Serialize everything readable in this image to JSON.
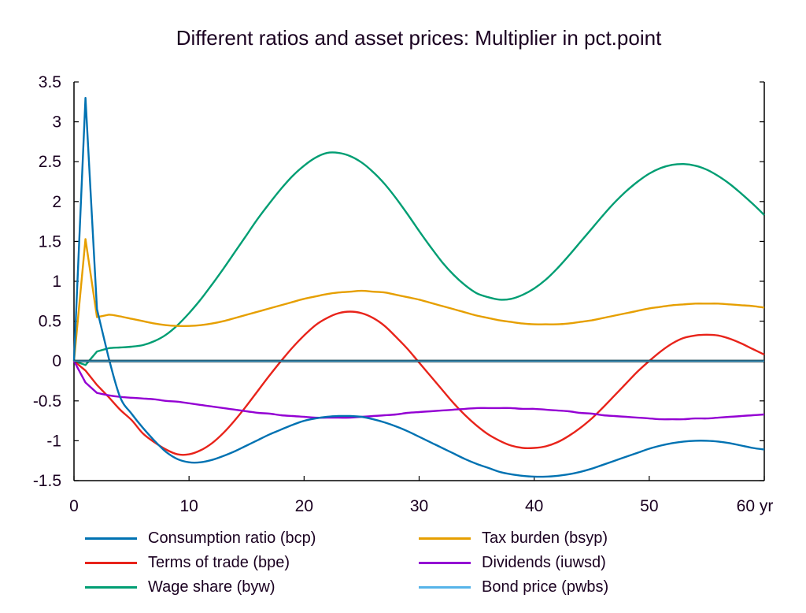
{
  "chart_data": {
    "type": "line",
    "title": "Different ratios and asset prices: Multiplier in pct.point",
    "xlabel": "",
    "ylabel": "",
    "x_unit_label": "yr",
    "xlim": [
      0,
      60
    ],
    "ylim": [
      -1.5,
      3.5
    ],
    "x_ticks": [
      0,
      10,
      20,
      30,
      40,
      50,
      60
    ],
    "x_tick_labels": [
      "0",
      "10",
      "20",
      "30",
      "40",
      "50",
      "60 yr"
    ],
    "y_ticks": [
      -1.5,
      -1,
      -0.5,
      0,
      0.5,
      1,
      1.5,
      2,
      2.5,
      3,
      3.5
    ],
    "y_tick_labels": [
      "-1.5",
      "-1",
      "-0.5",
      "0",
      "0.5",
      "1",
      "1.5",
      "2",
      "2.5",
      "3",
      "3.5"
    ],
    "grid": false,
    "legend_position": "bottom",
    "x": [
      0,
      1,
      2,
      3,
      4,
      5,
      6,
      7,
      8,
      9,
      10,
      11,
      12,
      13,
      14,
      15,
      16,
      17,
      18,
      19,
      20,
      21,
      22,
      23,
      24,
      25,
      26,
      27,
      28,
      29,
      30,
      31,
      32,
      33,
      34,
      35,
      36,
      37,
      38,
      39,
      40,
      41,
      42,
      43,
      44,
      45,
      46,
      47,
      48,
      49,
      50,
      51,
      52,
      53,
      54,
      55,
      56,
      57,
      58,
      59,
      60
    ],
    "series": [
      {
        "name": "Consumption ratio (bcp)",
        "color": "#0072b2",
        "values": [
          0,
          3.3,
          0.65,
          0.05,
          -0.45,
          -0.66,
          -0.84,
          -1.0,
          -1.14,
          -1.23,
          -1.27,
          -1.27,
          -1.24,
          -1.19,
          -1.13,
          -1.06,
          -0.99,
          -0.92,
          -0.86,
          -0.8,
          -0.75,
          -0.72,
          -0.7,
          -0.69,
          -0.69,
          -0.7,
          -0.73,
          -0.77,
          -0.82,
          -0.88,
          -0.95,
          -1.02,
          -1.09,
          -1.16,
          -1.23,
          -1.29,
          -1.34,
          -1.39,
          -1.42,
          -1.44,
          -1.45,
          -1.45,
          -1.44,
          -1.42,
          -1.39,
          -1.35,
          -1.3,
          -1.25,
          -1.2,
          -1.15,
          -1.1,
          -1.06,
          -1.03,
          -1.01,
          -1.0,
          -1.0,
          -1.01,
          -1.03,
          -1.06,
          -1.09,
          -1.11
        ]
      },
      {
        "name": "Terms of trade (bpe)",
        "color": "#e8231a",
        "values": [
          0,
          -0.12,
          -0.3,
          -0.45,
          -0.61,
          -0.74,
          -0.91,
          -1.02,
          -1.11,
          -1.17,
          -1.17,
          -1.12,
          -1.03,
          -0.9,
          -0.74,
          -0.56,
          -0.37,
          -0.18,
          0.0,
          0.17,
          0.32,
          0.45,
          0.54,
          0.6,
          0.62,
          0.6,
          0.54,
          0.44,
          0.3,
          0.15,
          -0.02,
          -0.19,
          -0.36,
          -0.53,
          -0.68,
          -0.81,
          -0.92,
          -1.0,
          -1.06,
          -1.09,
          -1.09,
          -1.07,
          -1.02,
          -0.94,
          -0.84,
          -0.72,
          -0.58,
          -0.43,
          -0.28,
          -0.13,
          0.0,
          0.12,
          0.22,
          0.29,
          0.32,
          0.33,
          0.32,
          0.28,
          0.22,
          0.15,
          0.08
        ]
      },
      {
        "name": "Wage share (byw)",
        "color": "#009e73",
        "values": [
          0,
          -0.05,
          0.12,
          0.16,
          0.17,
          0.18,
          0.2,
          0.25,
          0.33,
          0.45,
          0.6,
          0.77,
          0.96,
          1.16,
          1.37,
          1.58,
          1.79,
          1.98,
          2.16,
          2.32,
          2.45,
          2.55,
          2.61,
          2.61,
          2.57,
          2.49,
          2.37,
          2.22,
          2.04,
          1.84,
          1.63,
          1.43,
          1.24,
          1.08,
          0.95,
          0.85,
          0.8,
          0.77,
          0.78,
          0.83,
          0.91,
          1.02,
          1.16,
          1.32,
          1.49,
          1.66,
          1.83,
          1.99,
          2.13,
          2.25,
          2.35,
          2.42,
          2.46,
          2.47,
          2.45,
          2.4,
          2.32,
          2.22,
          2.1,
          1.97,
          1.83
        ]
      },
      {
        "name": "Tax burden (bsyp)",
        "color": "#e69f00",
        "values": [
          0,
          1.53,
          0.55,
          0.58,
          0.56,
          0.53,
          0.5,
          0.47,
          0.45,
          0.44,
          0.44,
          0.45,
          0.47,
          0.5,
          0.54,
          0.58,
          0.62,
          0.66,
          0.7,
          0.74,
          0.78,
          0.81,
          0.84,
          0.86,
          0.87,
          0.88,
          0.87,
          0.86,
          0.83,
          0.8,
          0.77,
          0.73,
          0.69,
          0.65,
          0.61,
          0.57,
          0.54,
          0.51,
          0.49,
          0.47,
          0.46,
          0.46,
          0.46,
          0.47,
          0.49,
          0.51,
          0.54,
          0.57,
          0.6,
          0.63,
          0.66,
          0.68,
          0.7,
          0.71,
          0.72,
          0.72,
          0.72,
          0.71,
          0.7,
          0.69,
          0.67
        ]
      },
      {
        "name": "Dividends (iuwsd)",
        "color": "#9400d3",
        "values": [
          0,
          -0.27,
          -0.4,
          -0.43,
          -0.45,
          -0.46,
          -0.47,
          -0.48,
          -0.5,
          -0.51,
          -0.53,
          -0.55,
          -0.57,
          -0.59,
          -0.61,
          -0.63,
          -0.65,
          -0.66,
          -0.68,
          -0.69,
          -0.7,
          -0.71,
          -0.71,
          -0.71,
          -0.71,
          -0.7,
          -0.69,
          -0.68,
          -0.67,
          -0.65,
          -0.64,
          -0.63,
          -0.62,
          -0.61,
          -0.6,
          -0.59,
          -0.59,
          -0.59,
          -0.59,
          -0.6,
          -0.6,
          -0.61,
          -0.62,
          -0.63,
          -0.65,
          -0.66,
          -0.68,
          -0.69,
          -0.7,
          -0.71,
          -0.72,
          -0.73,
          -0.73,
          -0.73,
          -0.72,
          -0.72,
          -0.71,
          -0.7,
          -0.69,
          -0.68,
          -0.67
        ]
      },
      {
        "name": "Bond price (pwbs)",
        "color": "#56b4e9",
        "values": [
          0,
          0,
          0,
          0,
          0,
          0,
          0,
          0,
          0,
          0,
          0,
          0,
          0,
          0,
          0,
          0,
          0,
          0,
          0,
          0,
          0,
          0,
          0,
          0,
          0,
          0,
          0,
          0,
          0,
          0,
          0,
          0,
          0,
          0,
          0,
          0,
          0,
          0,
          0,
          0,
          0,
          0,
          0,
          0,
          0,
          0,
          0,
          0,
          0,
          0,
          0,
          0,
          0,
          0,
          0,
          0,
          0,
          0,
          0,
          0,
          0
        ]
      }
    ]
  },
  "legend": {
    "items": [
      {
        "label": "Consumption ratio (bcp)",
        "color": "#0072b2"
      },
      {
        "label": "Terms of trade (bpe)",
        "color": "#e8231a"
      },
      {
        "label": "Wage share (byw)",
        "color": "#009e73"
      },
      {
        "label": "Tax burden (bsyp)",
        "color": "#e69f00"
      },
      {
        "label": "Dividends (iuwsd)",
        "color": "#9400d3"
      },
      {
        "label": "Bond price (pwbs)",
        "color": "#56b4e9"
      }
    ]
  }
}
